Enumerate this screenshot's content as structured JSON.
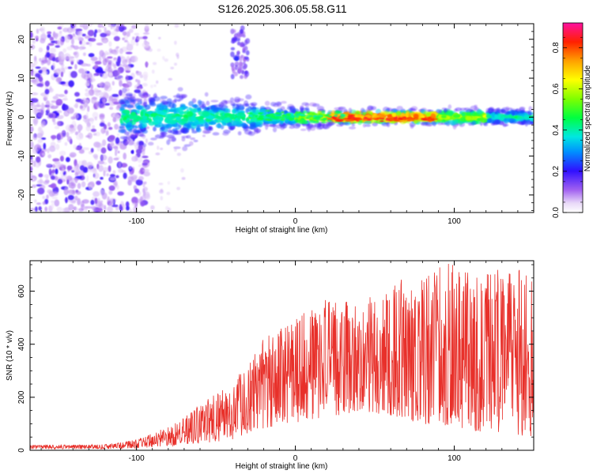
{
  "title": "S126.2025.306.05.58.G11",
  "chart_data": [
    {
      "type": "heatmap",
      "title": "S126.2025.306.05.58.G11",
      "xlabel": "Height of straight line (km)",
      "ylabel": "Frequency (Hz)",
      "xlim": [
        -167,
        150
      ],
      "ylim": [
        -24.5,
        24
      ],
      "xticks": [
        -100,
        0,
        100
      ],
      "yticks": [
        -20,
        -10,
        0,
        10,
        20
      ],
      "colorbar": {
        "label": "Normalized spectral amplitude",
        "range": [
          0,
          0.92
        ],
        "ticks": [
          "0.0",
          "0.2",
          "0.4",
          "0.6",
          "0.8"
        ],
        "colormap": "rainbow (white/light-purple low to red/magenta high)"
      },
      "features": {
        "noise_region_x": [
          -167,
          -105
        ],
        "signal_start_x": -110,
        "band_center_freq": 0,
        "peak_region_x": [
          20,
          90
        ],
        "spur_x": [
          -40,
          -30
        ],
        "spur_freq": [
          10,
          23
        ]
      }
    },
    {
      "type": "line",
      "xlabel": "Height of straight line (km)",
      "ylabel": "SNR (10 * v/v)",
      "xlim": [
        -167,
        150
      ],
      "ylim": [
        0,
        715
      ],
      "xticks": [
        -100,
        0,
        100
      ],
      "yticks": [
        0,
        200,
        400,
        600
      ],
      "series": [
        {
          "name": "SNR",
          "color": "#e8302a",
          "envelope": {
            "x": [
              -167,
              -120,
              -100,
              -80,
              -60,
              -40,
              -20,
              0,
              20,
              40,
              60,
              80,
              100,
              120,
              150
            ],
            "min": [
              5,
              5,
              8,
              15,
              25,
              40,
              80,
              100,
              120,
              150,
              130,
              100,
              90,
              60,
              50
            ],
            "max": [
              20,
              22,
              40,
              90,
              170,
              260,
              420,
              520,
              570,
              560,
              650,
              660,
              715,
              680,
              700
            ]
          }
        }
      ]
    }
  ],
  "colors": {
    "line": "#e8302a",
    "axis": "#000000"
  }
}
